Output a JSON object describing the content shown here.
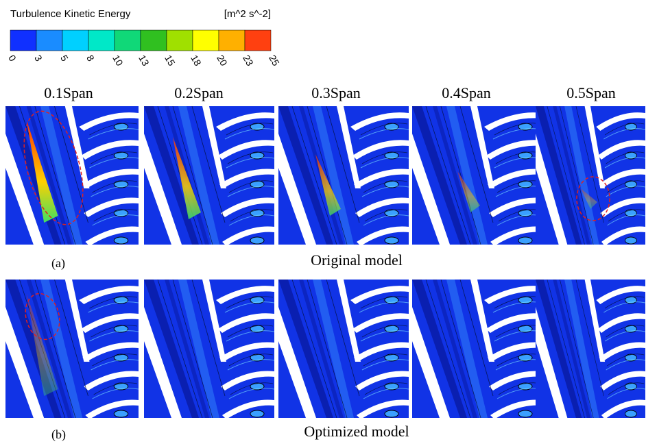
{
  "colorbar": {
    "title": "Turbulence Kinetic Energy",
    "unit": "[m^2 s^-2]",
    "ticks": [
      0,
      3,
      5,
      8,
      10,
      13,
      15,
      18,
      20,
      23,
      25
    ]
  },
  "columns": [
    "0.1Span",
    "0.2Span",
    "0.3Span",
    "0.4Span",
    "0.5Span"
  ],
  "rows": [
    {
      "tag": "(a)",
      "label": "Original model"
    },
    {
      "tag": "(b)",
      "label": "Optimized model"
    }
  ]
}
